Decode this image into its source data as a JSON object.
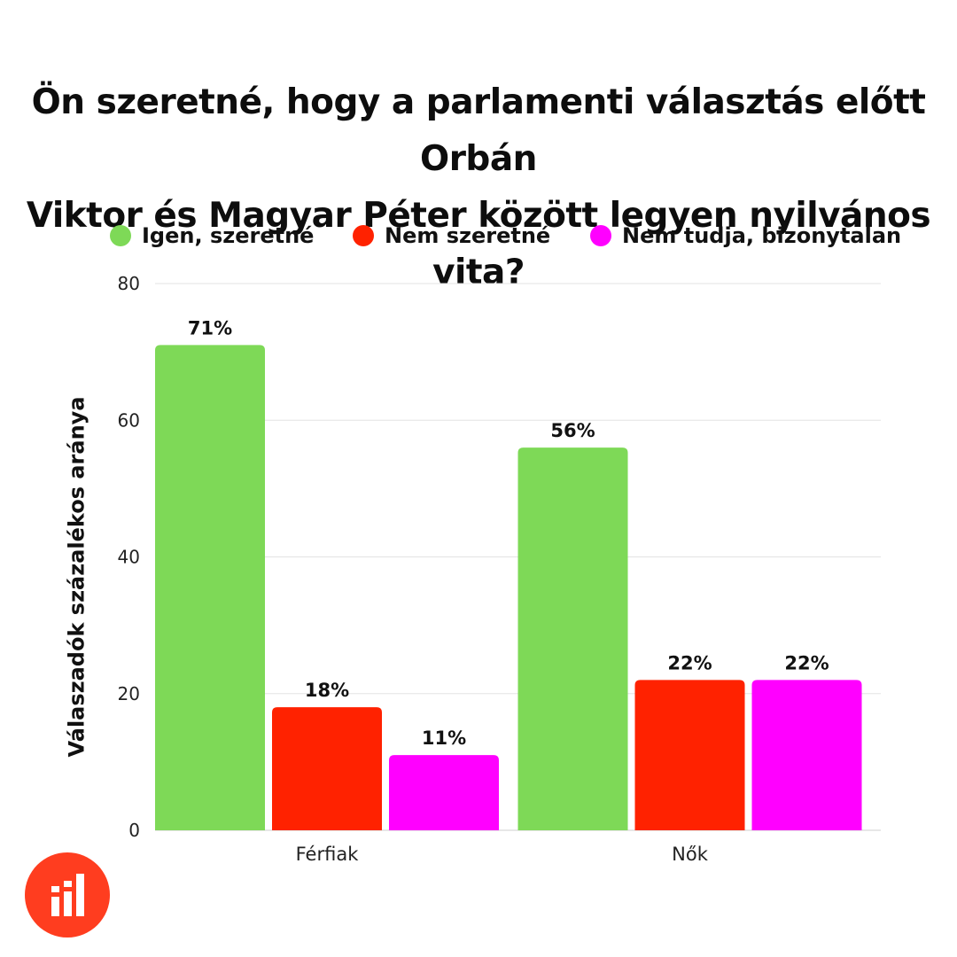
{
  "chart_data": {
    "type": "bar",
    "title": "Ön szeretné, hogy a parlamenti választás előtt Orbán Viktor és Magyar Péter között legyen nyilvános vita?",
    "title_lines": [
      "Ön szeretné, hogy a parlamenti választás előtt Orbán",
      "Viktor és Magyar Péter között legyen nyilvános vita?"
    ],
    "ylabel": "Válaszadók százalékos aránya",
    "xlabel": "",
    "categories": [
      "Férfiak",
      "Nők"
    ],
    "ylim": [
      0,
      80
    ],
    "yticks": [
      "0",
      "20",
      "40",
      "60",
      "80"
    ],
    "grid": true,
    "legend_position": "top",
    "series": [
      {
        "name": "Igen, szeretné",
        "color": "#7ed957",
        "values": [
          71,
          56
        ],
        "labels": [
          "71%",
          "56%"
        ]
      },
      {
        "name": "Nem szeretné",
        "color": "#ff2200",
        "values": [
          18,
          22
        ],
        "labels": [
          "18%",
          "22%"
        ]
      },
      {
        "name": "Nem tudja, bizonytalan",
        "color": "#ff00ff",
        "values": [
          11,
          22
        ],
        "labels": [
          "11%",
          "22%"
        ]
      }
    ]
  },
  "logo": {
    "icon": "bar-chart-logo-icon",
    "color": "#ff3d1f"
  }
}
